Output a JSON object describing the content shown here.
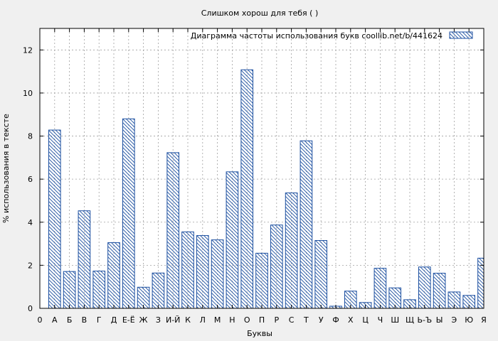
{
  "chart_data": {
    "type": "bar",
    "title": "Слишком хорош для тебя ( )",
    "xlabel": "Буквы",
    "ylabel": "% использования в тексте",
    "legend": {
      "label": "Диаграмма частоты использования букв  coollib.net/b/441624",
      "position": "top-right"
    },
    "grid": true,
    "ylim": [
      0,
      13
    ],
    "yticks": [
      0,
      2,
      4,
      6,
      8,
      10,
      12
    ],
    "x_tick_labels": [
      "0",
      "А",
      "Б",
      "В",
      "Г",
      "Д",
      "Е-Ё",
      "Ж",
      "З",
      "И-Й",
      "К",
      "Л",
      "М",
      "Н",
      "О",
      "П",
      "Р",
      "С",
      "Т",
      "У",
      "Ф",
      "Х",
      "Ц",
      "Ч",
      "Ш",
      "Щ",
      "Ь-Ъ",
      "Ы",
      "Э",
      "Ю",
      "Я"
    ],
    "categories": [
      "А",
      "Б",
      "В",
      "Г",
      "Д",
      "Е-Ё",
      "Ж",
      "З",
      "И-Й",
      "К",
      "Л",
      "М",
      "Н",
      "О",
      "П",
      "Р",
      "С",
      "Т",
      "У",
      "Ф",
      "Х",
      "Ц",
      "Ч",
      "Ш",
      "Щ",
      "Ь-Ъ",
      "Ы",
      "Э",
      "Ю",
      "Я"
    ],
    "values": [
      8.28,
      1.71,
      4.53,
      1.73,
      3.05,
      8.8,
      0.98,
      1.64,
      7.23,
      3.55,
      3.38,
      3.18,
      6.34,
      11.08,
      2.56,
      3.87,
      5.36,
      7.78,
      3.15,
      0.1,
      0.8,
      0.27,
      1.86,
      0.95,
      0.4,
      1.92,
      1.63,
      0.76,
      0.6,
      2.33
    ],
    "colors": {
      "bar": "#1c4fa0",
      "plot_bg": "#ffffff",
      "page_bg": "#f0f0f0",
      "grid": "#a0a0a0"
    }
  }
}
